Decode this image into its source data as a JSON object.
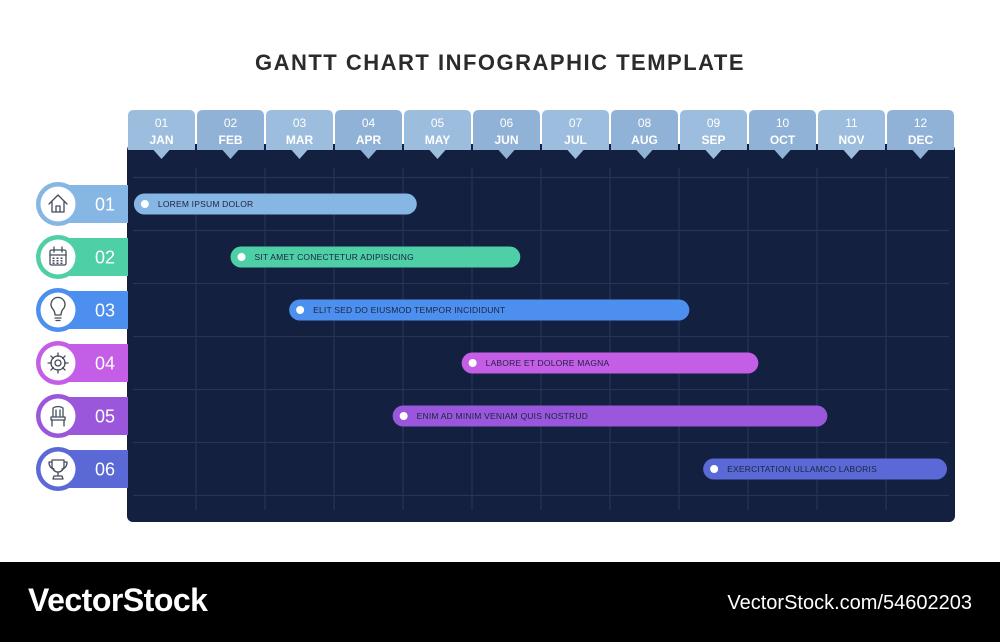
{
  "title": "GANTT CHART INFOGRAPHIC TEMPLATE",
  "chart_data": {
    "type": "gantt",
    "months": [
      {
        "num": "01",
        "name": "JAN"
      },
      {
        "num": "02",
        "name": "FEB"
      },
      {
        "num": "03",
        "name": "MAR"
      },
      {
        "num": "04",
        "name": "APR"
      },
      {
        "num": "05",
        "name": "MAY"
      },
      {
        "num": "06",
        "name": "JUN"
      },
      {
        "num": "07",
        "name": "JUL"
      },
      {
        "num": "08",
        "name": "AUG"
      },
      {
        "num": "09",
        "name": "SEP"
      },
      {
        "num": "10",
        "name": "OCT"
      },
      {
        "num": "11",
        "name": "NOV"
      },
      {
        "num": "12",
        "name": "DEC"
      }
    ],
    "tasks": [
      {
        "id": "01",
        "label": "LOREM IPSUM DOLOR",
        "start": 1.1,
        "end": 5.2,
        "color": "#86b6e3",
        "icon": "home-icon"
      },
      {
        "id": "02",
        "label": "SIT AMET CONECTETUR ADIPISICING",
        "start": 2.5,
        "end": 6.7,
        "color": "#4fcfa6",
        "icon": "calendar-icon"
      },
      {
        "id": "03",
        "label": "ELIT SED DO EIUSMOD TEMPOR INCIDIDUNT",
        "start": 3.35,
        "end": 9.15,
        "color": "#4c8fee",
        "icon": "lightbulb-icon"
      },
      {
        "id": "04",
        "label": "LABORE ET DOLORE MAGNA",
        "start": 5.85,
        "end": 10.15,
        "color": "#c55ee6",
        "icon": "gear-icon"
      },
      {
        "id": "05",
        "label": "ENIM AD MINIM VENIAM QUIS NOSTRUD",
        "start": 4.85,
        "end": 11.15,
        "color": "#9a57dc",
        "icon": "chair-icon"
      },
      {
        "id": "06",
        "label": "EXERCITATION ULLAMCO LABORIS",
        "start": 9.35,
        "end": 12.9,
        "color": "#5a69d5",
        "icon": "trophy-icon"
      }
    ]
  },
  "footer": {
    "brand": "VectorStock",
    "reference": "VectorStock.com/54602203"
  }
}
